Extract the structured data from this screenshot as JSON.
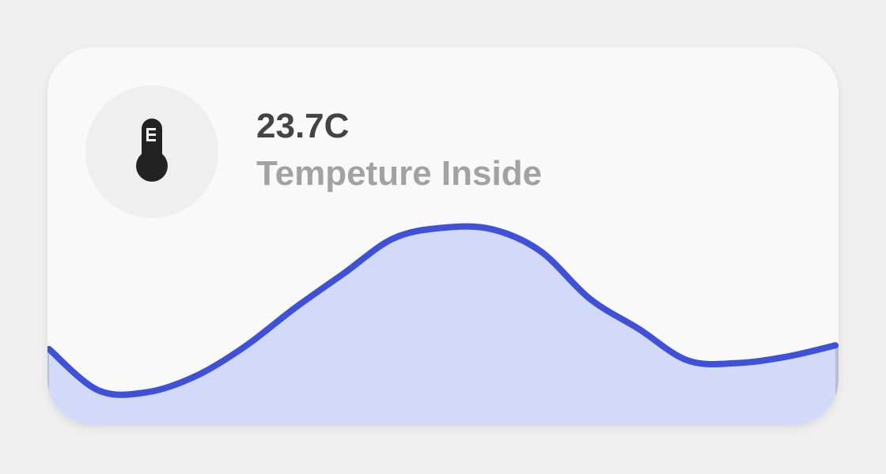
{
  "sensor": {
    "value": "23.7C",
    "label": "Tempeture Inside",
    "icon": "thermometer-icon"
  },
  "chart_data": {
    "type": "area",
    "title": "",
    "xlabel": "",
    "ylabel": "",
    "values": [
      12,
      5.5,
      5.2,
      7.8,
      12.5,
      18.5,
      24,
      29.5,
      31.2,
      31.0,
      27.5,
      20,
      15.2,
      10.2,
      9.8,
      10.8,
      12.6
    ],
    "ylim": [
      0,
      40
    ],
    "grid": false,
    "legend": "none"
  },
  "colors": {
    "line": "#3f51d9",
    "fill": "#d3d9f8",
    "fill_edge": "#b9bdd3",
    "value_text": "#444444",
    "label_text": "#a2a2a2",
    "card": "#f9f9f9",
    "icon_bg": "#efefef",
    "icon": "#222222"
  }
}
